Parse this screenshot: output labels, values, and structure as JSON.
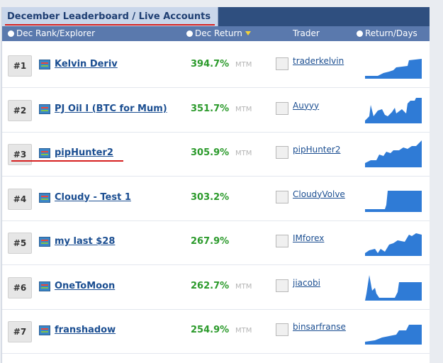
{
  "header": {
    "title": "December Leaderboard / Live Accounts"
  },
  "columns": [
    "Dec Rank/Explorer",
    "Dec Return",
    "Trader",
    "Return/Days"
  ],
  "rows": [
    {
      "rank": "#1",
      "name": "Kelvin Deriv",
      "return": "394.7%",
      "tag": "MTM",
      "trader": "traderkelvin"
    },
    {
      "rank": "#2",
      "name": "PJ Oil I (BTC for Mum)",
      "return": "351.7%",
      "tag": "MTM",
      "trader": "Auyyy"
    },
    {
      "rank": "#3",
      "name": "pipHunter2",
      "return": "305.9%",
      "tag": "MTM",
      "trader": "pipHunter2"
    },
    {
      "rank": "#4",
      "name": "Cloudy - Test 1",
      "return": "303.2%",
      "trader": "CloudyVolve"
    },
    {
      "rank": "#5",
      "name": "my last $28",
      "return": "267.9%",
      "trader": "IMforex"
    },
    {
      "rank": "#6",
      "name": "OneToMoon",
      "return": "262.7%",
      "tag": "MTM",
      "trader": "jiacobi"
    },
    {
      "rank": "#7",
      "name": "franshadow",
      "return": "254.9%",
      "tag": "MTM",
      "trader": "binsarfranse"
    }
  ]
}
